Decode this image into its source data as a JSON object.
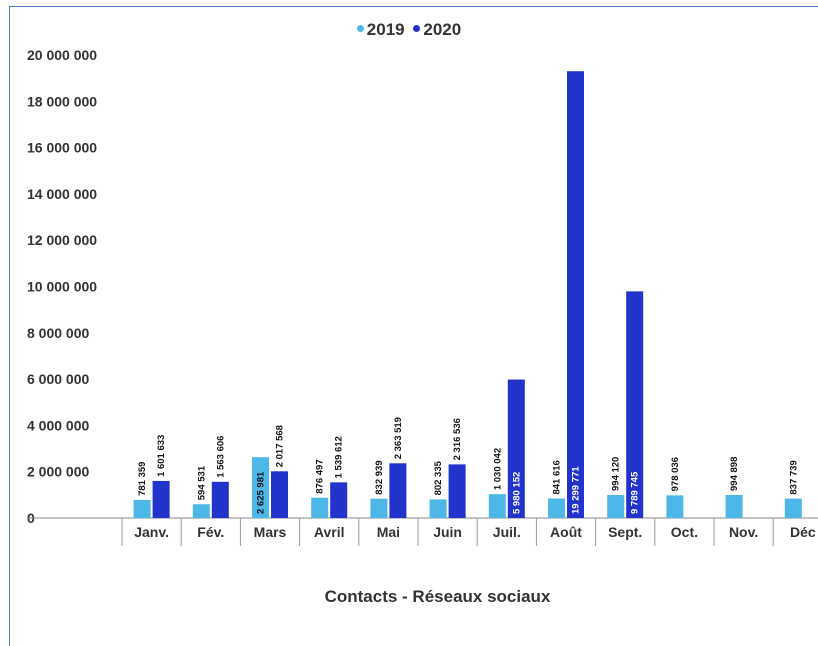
{
  "chart_data": {
    "type": "bar",
    "title": "Contacts - Réseaux sociaux",
    "categories": [
      "Janv.",
      "Fév.",
      "Mars",
      "Avril",
      "Mai",
      "Juin",
      "Juil.",
      "Août",
      "Sept.",
      "Oct.",
      "Nov.",
      "Déc"
    ],
    "series": [
      {
        "name": "2019",
        "color": "#4db8e8",
        "values": [
          781359,
          594531,
          2625981,
          876497,
          832939,
          802335,
          1030042,
          841616,
          994120,
          978036,
          994898,
          837739
        ],
        "labels": [
          "781 359",
          "594 531",
          "2 625 981",
          "876 497",
          "832 939",
          "802 335",
          "1 030 042",
          "841 616",
          "994 120",
          "978 036",
          "994 898",
          "837 739"
        ]
      },
      {
        "name": "2020",
        "color": "#2233cc",
        "values": [
          1601633,
          1563606,
          2017568,
          1539612,
          2363519,
          2316536,
          5980152,
          19299771,
          9789745,
          null,
          null,
          null
        ],
        "labels": [
          "1 601 633",
          "1 563 606",
          "2 017 568",
          "1 539 612",
          "2 363 519",
          "2 316 536",
          "5 980 152",
          "19 299 771",
          "9 789 745",
          "",
          "",
          ""
        ]
      }
    ],
    "yticks": [
      "0",
      "2 000 000",
      "4 000 000",
      "6 000 000",
      "8 000 000",
      "10 000 000",
      "12 000 000",
      "14 000 000",
      "16 000 000",
      "18 000 000",
      "20 000 000"
    ],
    "ylim": [
      0,
      20000000
    ],
    "grid": false,
    "legend_position": "top-center"
  }
}
